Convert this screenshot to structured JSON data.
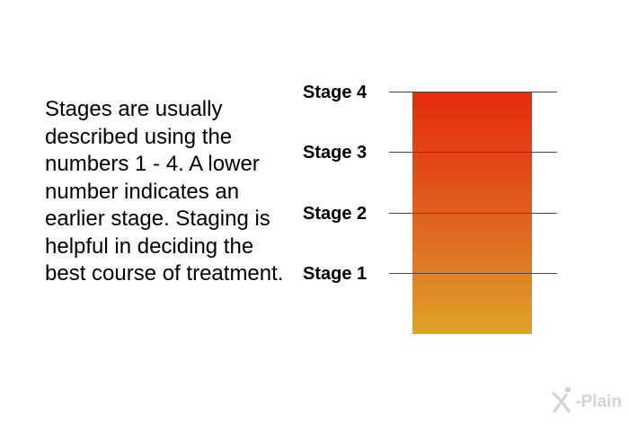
{
  "description": "Stages are usually described using the numbers 1 - 4. A lower number indicates an earlier stage. Staging is helpful in deciding the best course of treatment.",
  "stages": [
    {
      "label": "Stage 4"
    },
    {
      "label": "Stage 3"
    },
    {
      "label": "Stage 2"
    },
    {
      "label": "Stage 1"
    }
  ],
  "colors": {
    "bar_top": "#e52a0b",
    "bar_bottom": "#dfa428",
    "tick_line": "#4a4a4a"
  },
  "logo": {
    "text": "-Plain",
    "icon": "x-plain-figure-icon"
  }
}
